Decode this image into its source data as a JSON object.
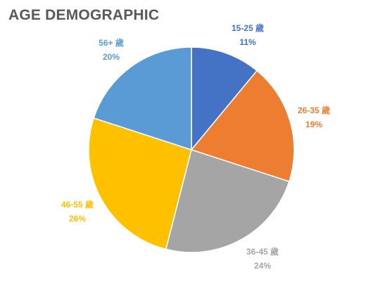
{
  "chart_data": {
    "type": "pie",
    "title": "AGE DEMOGRAPHIC",
    "categories": [
      "15-25 歲",
      "26-35 歲",
      "36-45 歲",
      "46-55 歲",
      "56+ 歲"
    ],
    "values": [
      11,
      19,
      24,
      26,
      20
    ],
    "value_labels": [
      "11%",
      "19%",
      "24%",
      "26%",
      "20%"
    ],
    "colors": [
      "#4472C4",
      "#ED7D31",
      "#A5A5A5",
      "#FFC000",
      "#5B9BD5"
    ],
    "start_angle_deg": 0,
    "direction": "clockwise",
    "legend": "none",
    "data_labels": "outside"
  }
}
